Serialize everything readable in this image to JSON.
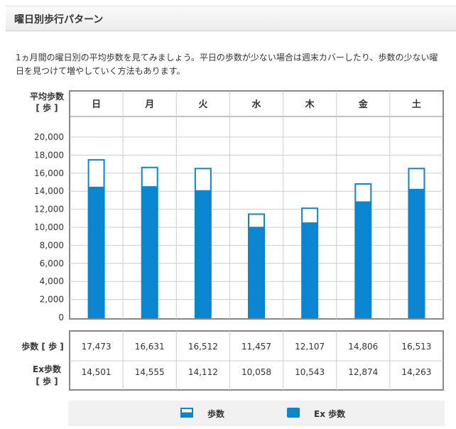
{
  "header": {
    "title": "曜日別歩行パターン"
  },
  "description": "1ヵ月間の曜日別の平均歩数を見てみましょう。平日の歩数が少ない場合は週末カバーしたり、歩数の少ない曜日を見つけて増やしていく方法もあります。",
  "colors": {
    "bar": "#0a85cf",
    "grid": "#cccccc",
    "frame": "#888888"
  },
  "chart_data": {
    "type": "bar",
    "ylabel_line1": "平均歩数",
    "ylabel_line2": "[ 歩 ]",
    "categories": [
      "日",
      "月",
      "火",
      "水",
      "木",
      "金",
      "土"
    ],
    "ylim": [
      0,
      20000
    ],
    "yticks": [
      "0",
      "2,000",
      "4,000",
      "6,000",
      "8,000",
      "10,000",
      "12,000",
      "14,000",
      "16,000",
      "18,000",
      "20,000"
    ],
    "series": [
      {
        "name": "歩数",
        "values": [
          17473,
          16631,
          16512,
          11457,
          12107,
          14806,
          16513
        ]
      },
      {
        "name": "Ex歩数",
        "values": [
          14501,
          14555,
          14112,
          10058,
          10543,
          12874,
          14263
        ]
      }
    ],
    "legend_position": "bottom"
  },
  "table": {
    "rows": [
      {
        "label": "歩数 [ 歩 ]",
        "label_line1": "歩数 [ 歩 ]",
        "label_line2": "",
        "values": [
          "17,473",
          "16,631",
          "16,512",
          "11,457",
          "12,107",
          "14,806",
          "16,513"
        ]
      },
      {
        "label": "Ex歩数 [ 歩 ]",
        "label_line1": "Ex歩数",
        "label_line2": "[ 歩 ]",
        "values": [
          "14,501",
          "14,555",
          "14,112",
          "10,058",
          "10,543",
          "12,874",
          "14,263"
        ]
      }
    ]
  },
  "legend": {
    "steps_label": "歩数",
    "ex_label": "Ex 歩数"
  }
}
